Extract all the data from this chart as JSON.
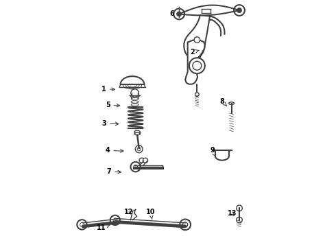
{
  "bg_color": "#ffffff",
  "line_color": "#404040",
  "label_color": "#000000",
  "fig_width": 4.9,
  "fig_height": 3.6,
  "dpi": 100,
  "labels": {
    "6": [
      0.515,
      0.945,
      0.565,
      0.945
    ],
    "2": [
      0.6,
      0.79,
      0.635,
      0.8
    ],
    "1": [
      0.24,
      0.64,
      0.295,
      0.638
    ],
    "5": [
      0.255,
      0.575,
      0.315,
      0.572
    ],
    "3": [
      0.24,
      0.5,
      0.31,
      0.498
    ],
    "8": [
      0.72,
      0.59,
      0.74,
      0.57
    ],
    "4": [
      0.255,
      0.39,
      0.33,
      0.388
    ],
    "9": [
      0.68,
      0.39,
      0.695,
      0.365
    ],
    "7": [
      0.26,
      0.305,
      0.32,
      0.302
    ],
    "12": [
      0.34,
      0.14,
      0.358,
      0.125
    ],
    "10": [
      0.43,
      0.14,
      0.435,
      0.11
    ],
    "11": [
      0.23,
      0.075,
      0.265,
      0.088
    ],
    "13": [
      0.76,
      0.135,
      0.775,
      0.118
    ]
  }
}
